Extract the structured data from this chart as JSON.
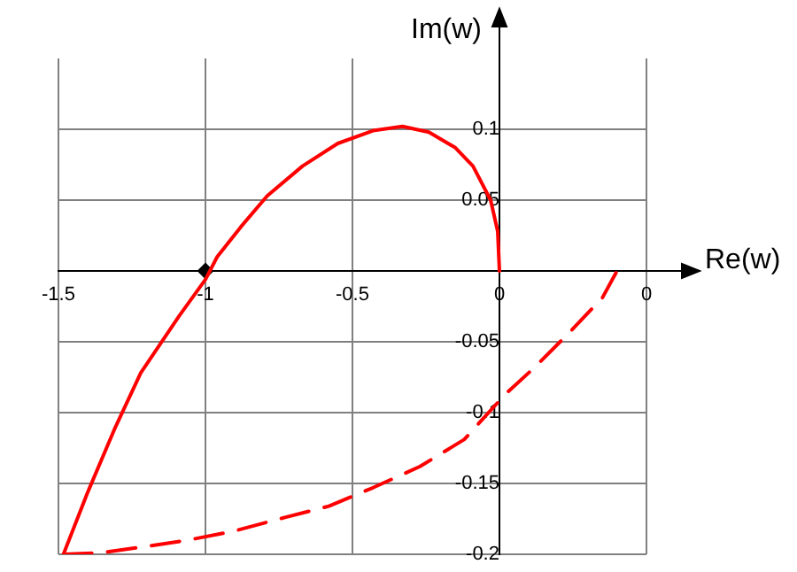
{
  "chart_data": {
    "type": "line",
    "xlabel": "Re(w)",
    "ylabel": "Im(w)",
    "xlim": [
      -1.5,
      0.5
    ],
    "ylim": [
      -0.2,
      0.15
    ],
    "xticks": [
      -1.5,
      -1,
      -0.5,
      0,
      {
        "value": 0.5,
        "label": "0"
      }
    ],
    "yticks": [
      -0.2,
      -0.15,
      -0.1,
      -0.05,
      {
        "value": 0,
        "label": null
      },
      0.05,
      0.1
    ],
    "grid": true,
    "legend": false,
    "series": [
      {
        "color": "#ff0000",
        "line_style": "solid",
        "x": [
          0,
          -0.006,
          -0.03,
          -0.09,
          -0.15,
          -0.24,
          -0.33,
          -0.43,
          -0.55,
          -0.67,
          -0.79,
          -0.88,
          -0.96,
          -1.0,
          -1.09,
          -1.22,
          -1.31,
          -1.4,
          -1.483
        ],
        "values": [
          0,
          0.028,
          0.05,
          0.074,
          0.087,
          0.098,
          0.102,
          0.099,
          0.09,
          0.074,
          0.053,
          0.031,
          0.01,
          -0.006,
          -0.032,
          -0.072,
          -0.112,
          -0.156,
          -0.2
        ]
      },
      {
        "color": "#ff0000",
        "line_style": "dashed",
        "x": [
          -1.483,
          -1.36,
          -1.22,
          -1.06,
          -0.91,
          -0.73,
          -0.58,
          -0.43,
          -0.27,
          -0.12,
          0.02,
          0.12,
          0.24,
          0.35,
          0.4
        ],
        "values": [
          -0.2,
          -0.199,
          -0.195,
          -0.19,
          -0.184,
          -0.174,
          -0.166,
          -0.153,
          -0.138,
          -0.119,
          -0.087,
          -0.068,
          -0.043,
          -0.019,
          0
        ]
      },
      {
        "type": "scatter",
        "color": "#000000",
        "marker": "diamond",
        "x": [
          -1
        ],
        "values": [
          0
        ]
      }
    ]
  }
}
